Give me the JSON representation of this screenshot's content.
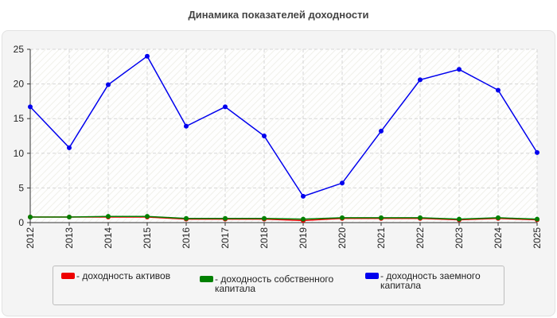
{
  "chart_data": {
    "type": "line",
    "title": "Динамика показателей доходности",
    "xlabel": "",
    "ylabel": "",
    "x": [
      "2012",
      "2013",
      "2014",
      "2015",
      "2016",
      "2017",
      "2018",
      "2019",
      "2020",
      "2021",
      "2022",
      "2023",
      "2024",
      "2025"
    ],
    "ylim": [
      0,
      25
    ],
    "yticks": [
      0,
      5,
      10,
      15,
      20,
      25
    ],
    "grid": true,
    "legend_position": "bottom",
    "series": [
      {
        "name": "- доходность активов",
        "color": "#ee0000",
        "values": [
          0.8,
          0.8,
          0.8,
          0.8,
          0.5,
          0.5,
          0.5,
          0.3,
          0.6,
          0.6,
          0.6,
          0.4,
          0.6,
          0.4
        ]
      },
      {
        "name": "- доходность собственного капитала",
        "color": "#008000",
        "values": [
          0.8,
          0.8,
          0.9,
          0.9,
          0.6,
          0.6,
          0.6,
          0.5,
          0.7,
          0.7,
          0.7,
          0.5,
          0.7,
          0.5
        ]
      },
      {
        "name": "- доходность заемного капитала",
        "color": "#0000ee",
        "values": [
          16.7,
          10.8,
          19.9,
          24.0,
          13.9,
          16.7,
          12.5,
          3.8,
          5.7,
          13.2,
          20.6,
          22.1,
          19.1,
          10.1
        ]
      }
    ]
  }
}
